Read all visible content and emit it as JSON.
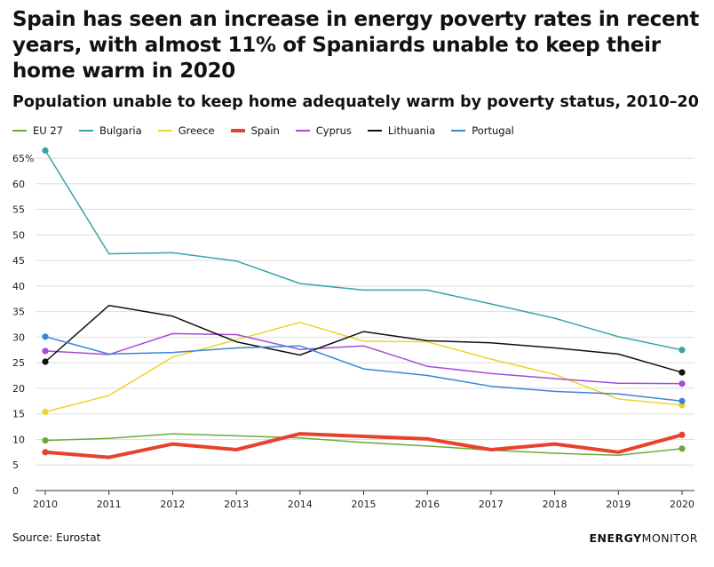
{
  "title": "Spain has seen an increase in energy poverty rates in recent years, with almost 11% of Spaniards unable to keep their home warm in 2020",
  "subtitle": "Population unable to keep home adequately warm by poverty status, 2010–20",
  "source": "Source: Eurostat",
  "brand": {
    "bold": "ENERGY",
    "light": "MONITOR"
  },
  "chart_data": {
    "type": "line",
    "x": [
      2010,
      2011,
      2012,
      2013,
      2014,
      2015,
      2016,
      2017,
      2018,
      2019,
      2020
    ],
    "ylim": [
      0,
      65
    ],
    "yticks": [
      0,
      5,
      10,
      15,
      20,
      25,
      30,
      35,
      40,
      45,
      50,
      55,
      60,
      65
    ],
    "ytick_labels": [
      "0",
      "5",
      "10",
      "15",
      "20",
      "25",
      "30",
      "35",
      "40",
      "45",
      "50",
      "55",
      "60",
      "65%"
    ],
    "grid": true,
    "legend_position": "top",
    "series": [
      {
        "name": "EU 27",
        "color": "#6aaa3a",
        "width": 1.5,
        "values": [
          9.8,
          10.2,
          11.1,
          10.7,
          10.3,
          9.4,
          8.7,
          7.9,
          7.3,
          6.9,
          8.2
        ]
      },
      {
        "name": "Bulgaria",
        "color": "#3aa3a8",
        "width": 1.5,
        "values": [
          66.5,
          46.3,
          46.5,
          44.9,
          40.5,
          39.2,
          39.2,
          36.5,
          33.7,
          30.1,
          27.5
        ]
      },
      {
        "name": "Greece",
        "color": "#f0d32a",
        "width": 1.5,
        "values": [
          15.4,
          18.6,
          26.1,
          29.5,
          32.9,
          29.2,
          29.1,
          25.7,
          22.7,
          17.9,
          16.7
        ]
      },
      {
        "name": "Spain",
        "color": "#e8412c",
        "width": 4,
        "values": [
          7.5,
          6.5,
          9.1,
          8.0,
          11.1,
          10.6,
          10.1,
          8.0,
          9.1,
          7.5,
          10.9
        ]
      },
      {
        "name": "Cyprus",
        "color": "#a64ad9",
        "width": 1.5,
        "values": [
          27.3,
          26.6,
          30.7,
          30.5,
          27.6,
          28.3,
          24.3,
          22.9,
          21.9,
          21.0,
          20.9
        ]
      },
      {
        "name": "Lithuania",
        "color": "#111111",
        "width": 1.5,
        "values": [
          25.2,
          36.2,
          34.1,
          29.1,
          26.5,
          31.1,
          29.3,
          28.9,
          27.9,
          26.7,
          23.1
        ]
      },
      {
        "name": "Portugal",
        "color": "#3a86d6",
        "width": 1.5,
        "values": [
          30.1,
          26.7,
          27.0,
          27.9,
          28.3,
          23.8,
          22.5,
          20.4,
          19.4,
          18.9,
          17.5
        ]
      }
    ]
  }
}
